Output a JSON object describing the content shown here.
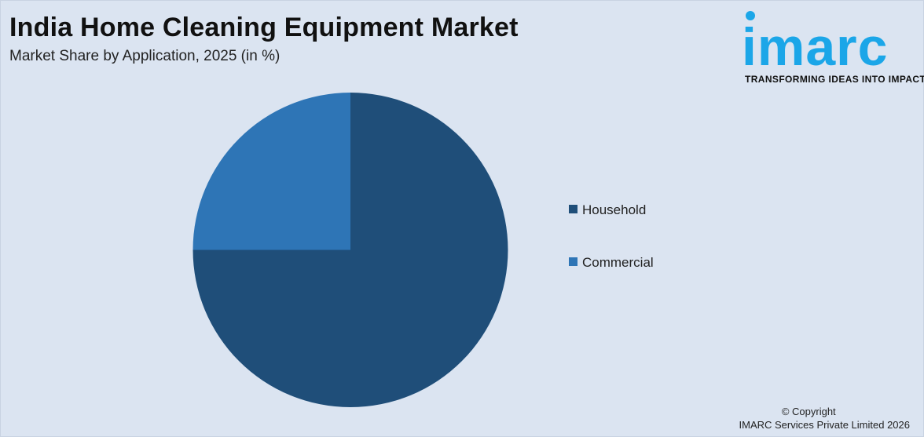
{
  "header": {
    "title": "India Home Cleaning Equipment Market",
    "subtitle": "Market Share by Application, 2025 (in %)"
  },
  "logo": {
    "wordmark": "imarc",
    "tagline": "TRANSFORMING IDEAS INTO IMPACT",
    "color": "#1ba6e8"
  },
  "chart_data": {
    "type": "pie",
    "title": "India Home Cleaning Equipment Market",
    "subtitle": "Market Share by Application, 2025 (in %)",
    "start_angle_deg": 0,
    "direction": "clockwise",
    "legend_placement": "right",
    "slices": [
      {
        "label": "Household",
        "value": 75,
        "color": "#1f4e79"
      },
      {
        "label": "Commercial",
        "value": 25,
        "color": "#2e75b6"
      }
    ]
  },
  "footer": {
    "copyright_line1": "© Copyright",
    "copyright_line2": "IMARC Services Private Limited 2026"
  }
}
